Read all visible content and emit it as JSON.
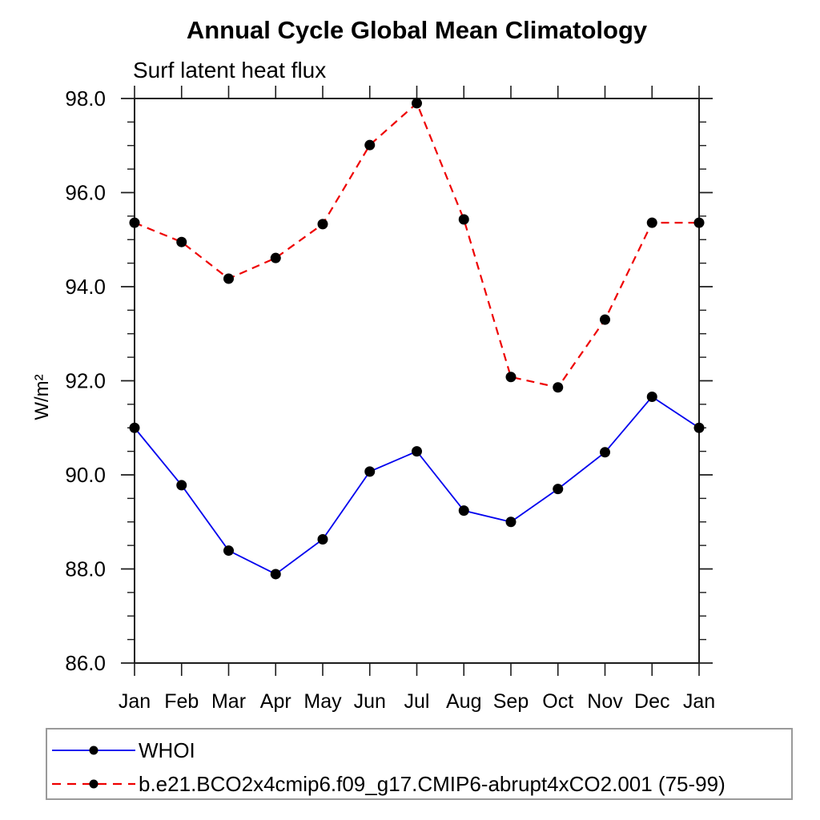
{
  "page": {
    "background": "#ffffff",
    "text_color": "#000000",
    "axis_color": "#1c1c1c"
  },
  "header": {
    "title": "Annual Cycle Global Mean Climatology",
    "subtitle": "Surf latent heat flux"
  },
  "chart_data": {
    "type": "line",
    "title": "Annual Cycle Global Mean Climatology",
    "subtitle": "Surf latent heat flux",
    "xlabel": "",
    "ylabel": "W/m²",
    "categories": [
      "Jan",
      "Feb",
      "Mar",
      "Apr",
      "May",
      "Jun",
      "Jul",
      "Aug",
      "Sep",
      "Oct",
      "Nov",
      "Dec",
      "Jan"
    ],
    "ylim": [
      86.0,
      98.0
    ],
    "ytick_major_interval": 2.0,
    "ytick_minor_interval": 0.5,
    "ytick_labels": [
      "86.0",
      "88.0",
      "90.0",
      "92.0",
      "94.0",
      "96.0",
      "98.0"
    ],
    "grid": false,
    "frame": "box-with-outward-ticks",
    "legend_position": "bottom-left-box",
    "series": [
      {
        "name": "WHOI",
        "color": "#0000ee",
        "line_style": "solid",
        "line_width": 1.8,
        "marker": "filled-circle",
        "marker_color": "#000000",
        "values": [
          91.0,
          89.78,
          88.39,
          87.89,
          88.63,
          90.07,
          90.5,
          89.24,
          89.0,
          89.7,
          90.48,
          91.66,
          91.0
        ]
      },
      {
        "name": "b.e21.BCO2x4cmip6.f09_g17.CMIP6-abrupt4xCO2.001 (75-99)",
        "color": "#ee0000",
        "line_style": "dashed",
        "line_width": 2.2,
        "marker": "filled-circle",
        "marker_color": "#000000",
        "values": [
          95.36,
          94.95,
          94.17,
          94.61,
          95.33,
          97.01,
          97.9,
          95.43,
          92.08,
          91.86,
          93.3,
          95.36,
          95.36
        ]
      }
    ]
  }
}
